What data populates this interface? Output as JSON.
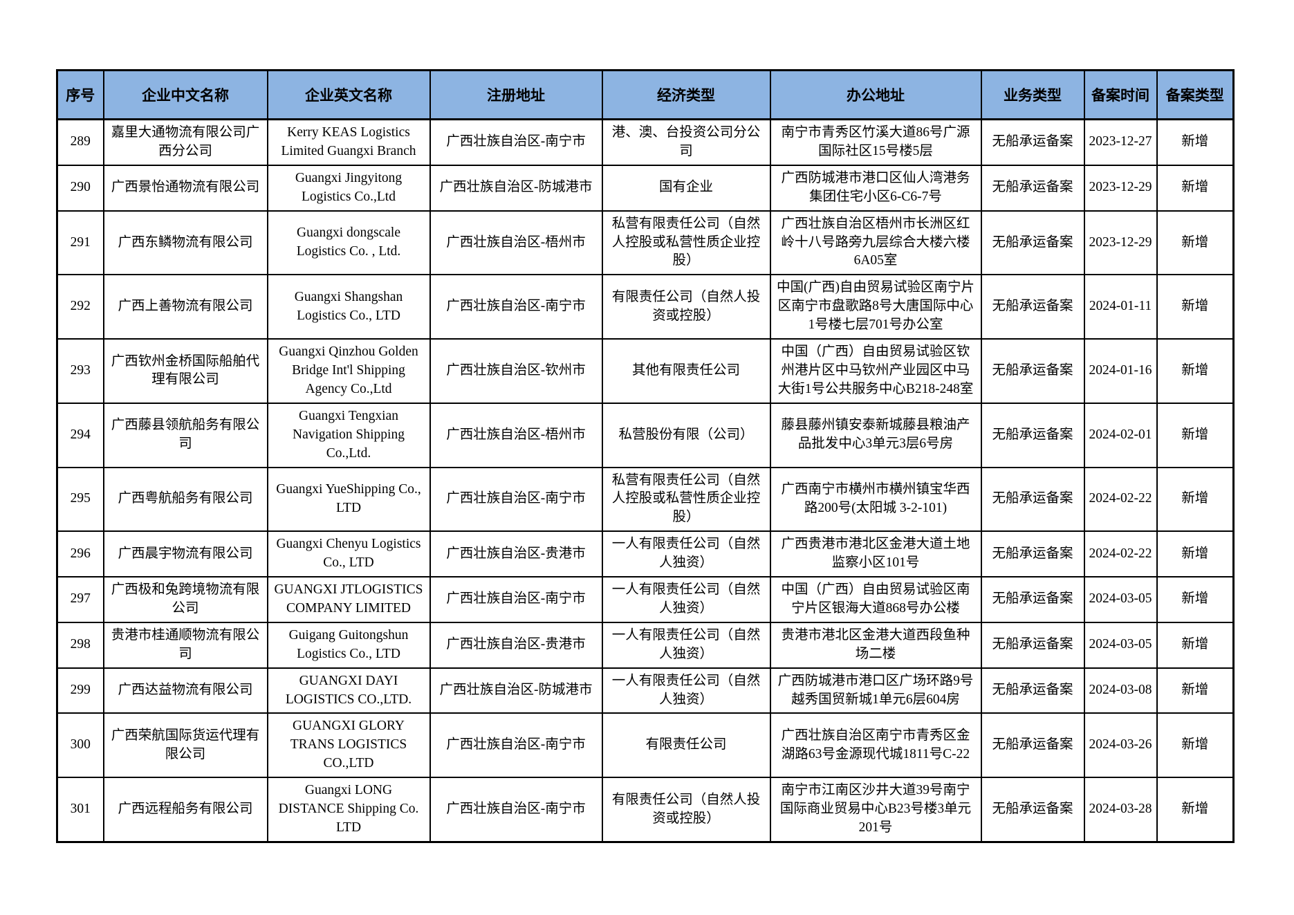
{
  "colors": {
    "header_bg": "#8DB4E2",
    "border": "#000000",
    "text": "#000000"
  },
  "table": {
    "headers": {
      "no": "序号",
      "name_cn": "企业中文名称",
      "name_en": "企业英文名称",
      "reg_address": "注册地址",
      "econ_type": "经济类型",
      "office_address": "办公地址",
      "biz_type": "业务类型",
      "filing_date": "备案时间",
      "filing_type": "备案类型"
    },
    "rows": [
      {
        "no": "289",
        "name_cn": "嘉里大通物流有限公司广西分公司",
        "name_en": "Kerry KEAS Logistics Limited Guangxi Branch",
        "reg_address": "广西壮族自治区-南宁市",
        "econ_type": "港、澳、台投资公司分公司",
        "office_address": "南宁市青秀区竹溪大道86号广源国际社区15号楼5层",
        "biz_type": "无船承运备案",
        "filing_date": "2023-12-27",
        "filing_type": "新增"
      },
      {
        "no": "290",
        "name_cn": "广西景怡通物流有限公司",
        "name_en": "Guangxi Jingyitong Logistics Co.,Ltd",
        "reg_address": "广西壮族自治区-防城港市",
        "econ_type": "国有企业",
        "office_address": "广西防城港市港口区仙人湾港务集团住宅小区6-C6-7号",
        "biz_type": "无船承运备案",
        "filing_date": "2023-12-29",
        "filing_type": "新增"
      },
      {
        "no": "291",
        "name_cn": "广西东鳞物流有限公司",
        "name_en": "Guangxi dongscale Logistics Co. , Ltd.",
        "reg_address": "广西壮族自治区-梧州市",
        "econ_type": "私营有限责任公司（自然人控股或私营性质企业控股）",
        "office_address": "广西壮族自治区梧州市长洲区红岭十八号路旁九层综合大楼六楼6A05室",
        "biz_type": "无船承运备案",
        "filing_date": "2023-12-29",
        "filing_type": "新增"
      },
      {
        "no": "292",
        "name_cn": "广西上善物流有限公司",
        "name_en": "Guangxi Shangshan Logistics Co., LTD",
        "reg_address": "广西壮族自治区-南宁市",
        "econ_type": "有限责任公司（自然人投资或控股）",
        "office_address": "中国(广西)自由贸易试验区南宁片区南宁市盘歌路8号大唐国际中心1号楼七层701号办公室",
        "biz_type": "无船承运备案",
        "filing_date": "2024-01-11",
        "filing_type": "新增"
      },
      {
        "no": "293",
        "name_cn": "广西钦州金桥国际船舶代理有限公司",
        "name_en": "Guangxi Qinzhou Golden Bridge Int'l Shipping Agency Co.,Ltd",
        "reg_address": "广西壮族自治区-钦州市",
        "econ_type": "其他有限责任公司",
        "office_address": "中国（广西）自由贸易试验区钦州港片区中马钦州产业园区中马大街1号公共服务中心B218-248室",
        "biz_type": "无船承运备案",
        "filing_date": "2024-01-16",
        "filing_type": "新增"
      },
      {
        "no": "294",
        "name_cn": "广西藤县领航船务有限公司",
        "name_en": "Guangxi Tengxian Navigation Shipping Co.,Ltd.",
        "reg_address": "广西壮族自治区-梧州市",
        "econ_type": "私营股份有限（公司）",
        "office_address": "藤县藤州镇安泰新城藤县粮油产品批发中心3单元3层6号房",
        "biz_type": "无船承运备案",
        "filing_date": "2024-02-01",
        "filing_type": "新增"
      },
      {
        "no": "295",
        "name_cn": "广西粤航船务有限公司",
        "name_en": "Guangxi YueShipping Co., LTD",
        "reg_address": "广西壮族自治区-南宁市",
        "econ_type": "私营有限责任公司（自然人控股或私营性质企业控股）",
        "office_address": "广西南宁市横州市横州镇宝华西路200号(太阳城 3-2-101)",
        "biz_type": "无船承运备案",
        "filing_date": "2024-02-22",
        "filing_type": "新增"
      },
      {
        "no": "296",
        "name_cn": "广西晨宇物流有限公司",
        "name_en": "Guangxi Chenyu Logistics Co., LTD",
        "reg_address": "广西壮族自治区-贵港市",
        "econ_type": "一人有限责任公司（自然人独资）",
        "office_address": "广西贵港市港北区金港大道土地监察小区101号",
        "biz_type": "无船承运备案",
        "filing_date": "2024-02-22",
        "filing_type": "新增"
      },
      {
        "no": "297",
        "name_cn": "广西极和兔跨境物流有限公司",
        "name_en": "GUANGXI JTLOGISTICS COMPANY LIMITED",
        "reg_address": "广西壮族自治区-南宁市",
        "econ_type": "一人有限责任公司（自然人独资）",
        "office_address": "中国（广西）自由贸易试验区南宁片区银海大道868号办公楼",
        "biz_type": "无船承运备案",
        "filing_date": "2024-03-05",
        "filing_type": "新增"
      },
      {
        "no": "298",
        "name_cn": "贵港市桂通顺物流有限公司",
        "name_en": "Guigang Guitongshun Logistics Co., LTD",
        "reg_address": "广西壮族自治区-贵港市",
        "econ_type": "一人有限责任公司（自然人独资）",
        "office_address": "贵港市港北区金港大道西段鱼种场二楼",
        "biz_type": "无船承运备案",
        "filing_date": "2024-03-05",
        "filing_type": "新增"
      },
      {
        "no": "299",
        "name_cn": "广西达益物流有限公司",
        "name_en": "GUANGXI DAYI LOGISTICS CO.,LTD.",
        "reg_address": "广西壮族自治区-防城港市",
        "econ_type": "一人有限责任公司（自然人独资）",
        "office_address": "广西防城港市港口区广场环路9号越秀国贸新城1单元6层604房",
        "biz_type": "无船承运备案",
        "filing_date": "2024-03-08",
        "filing_type": "新增"
      },
      {
        "no": "300",
        "name_cn": "广西荣航国际货运代理有限公司",
        "name_en": "GUANGXI GLORY TRANS LOGISTICS CO.,LTD",
        "reg_address": "广西壮族自治区-南宁市",
        "econ_type": "有限责任公司",
        "office_address": "广西壮族自治区南宁市青秀区金湖路63号金源现代城1811号C-22",
        "biz_type": "无船承运备案",
        "filing_date": "2024-03-26",
        "filing_type": "新增"
      },
      {
        "no": "301",
        "name_cn": "广西远程船务有限公司",
        "name_en": "Guangxi LONG DISTANCE Shipping Co. LTD",
        "reg_address": "广西壮族自治区-南宁市",
        "econ_type": "有限责任公司（自然人投资或控股）",
        "office_address": "南宁市江南区沙井大道39号南宁国际商业贸易中心B23号楼3单元201号",
        "biz_type": "无船承运备案",
        "filing_date": "2024-03-28",
        "filing_type": "新增"
      }
    ]
  }
}
